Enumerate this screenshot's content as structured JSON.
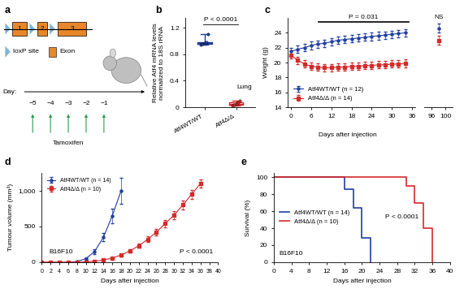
{
  "diagram": {
    "panel": "a",
    "exons": [
      "1",
      "2",
      "3"
    ],
    "key": [
      {
        "label": "loxP site",
        "color": "#7fb3d5"
      },
      {
        "label": "Exon",
        "color": "#e8862a"
      }
    ],
    "timeline": {
      "label": "Day:",
      "days": [
        "−5",
        "−4",
        "−3",
        "−2",
        "−1"
      ],
      "treatment": "Tamoxifen",
      "color": "#2e9e4f"
    }
  },
  "chart_data": [
    {
      "panel": "b",
      "type": "box",
      "ylabel": "Relative Atf4 mRNA levels\nnormalized to 18S rRNA",
      "categories": [
        "Atf4WT/WT",
        "Atf4Δ/Δ"
      ],
      "points": [
        [
          0.95,
          0.96,
          0.97,
          0.98,
          1.1
        ],
        [
          0.02,
          0.04,
          0.05,
          0.07,
          0.1
        ]
      ],
      "colors": [
        "#1f3f9f",
        "#d42a2a"
      ],
      "ylim": [
        0,
        1.35
      ],
      "yticks": [
        0,
        0.4,
        0.8,
        1.2
      ],
      "annotations": [
        "P < 0.0001",
        "Lung"
      ]
    },
    {
      "panel": "c",
      "type": "line",
      "xlabel": "Days after injection",
      "ylabel": "Weight (g)",
      "x": [
        0,
        2,
        4,
        6,
        8,
        10,
        12,
        14,
        16,
        18,
        20,
        22,
        24,
        26,
        28,
        30,
        32,
        34,
        98
      ],
      "series": [
        {
          "name": "Atf4WT/WT (n = 12)",
          "color": "#1f3f9f",
          "marker": "o",
          "values": [
            21.5,
            21.8,
            22.0,
            22.3,
            22.5,
            22.6,
            22.8,
            23.0,
            23.1,
            23.2,
            23.3,
            23.4,
            23.5,
            23.6,
            23.7,
            23.8,
            23.9,
            24.0,
            24.6
          ],
          "errors": [
            0.5,
            0.5,
            0.5,
            0.5,
            0.5,
            0.5,
            0.5,
            0.5,
            0.5,
            0.5,
            0.5,
            0.5,
            0.5,
            0.5,
            0.5,
            0.5,
            0.5,
            0.5,
            0.6
          ]
        },
        {
          "name": "Atf4Δ/Δ (n = 14)",
          "color": "#d42a2a",
          "marker": "s",
          "values": [
            21.0,
            20.3,
            19.8,
            19.5,
            19.4,
            19.3,
            19.3,
            19.4,
            19.4,
            19.5,
            19.5,
            19.6,
            19.6,
            19.7,
            19.7,
            19.8,
            19.8,
            19.9,
            23.0
          ],
          "errors": [
            0.5,
            0.5,
            0.5,
            0.5,
            0.5,
            0.5,
            0.5,
            0.5,
            0.5,
            0.5,
            0.5,
            0.5,
            0.5,
            0.5,
            0.5,
            0.5,
            0.5,
            0.5,
            0.6
          ]
        }
      ],
      "xlim": [
        [
          -1,
          37
        ],
        [
          94,
          102
        ]
      ],
      "xticks": [
        [
          0,
          6,
          12,
          18,
          24,
          30,
          36
        ],
        [
          96,
          100
        ]
      ],
      "ylim": [
        14,
        26
      ],
      "yticks": [
        14,
        16,
        18,
        20,
        22,
        24
      ],
      "legend": "lower left",
      "annotations": [
        "P = 0.031",
        "NS"
      ]
    },
    {
      "panel": "d",
      "type": "line",
      "xlabel": "Days after injection",
      "ylabel": "Tumour volume (mm³)",
      "series": [
        {
          "name": "Atf4WT/WT (n = 14)",
          "color": "#1f3f9f",
          "marker": "o",
          "x": [
            0,
            2,
            4,
            6,
            8,
            10,
            12,
            14,
            16,
            18
          ],
          "values": [
            0,
            0,
            0,
            0,
            10,
            50,
            150,
            350,
            650,
            1000
          ],
          "errors": [
            0,
            0,
            0,
            0,
            5,
            15,
            35,
            60,
            100,
            180
          ]
        },
        {
          "name": "Atf4Δ/Δ (n = 10)",
          "color": "#d42a2a",
          "marker": "s",
          "x": [
            0,
            2,
            4,
            6,
            8,
            10,
            12,
            14,
            16,
            18,
            20,
            22,
            24,
            26,
            28,
            30,
            32,
            34,
            36
          ],
          "values": [
            0,
            0,
            0,
            0,
            0,
            5,
            15,
            30,
            60,
            100,
            160,
            230,
            320,
            420,
            540,
            660,
            800,
            950,
            1100
          ],
          "errors": [
            0,
            0,
            0,
            0,
            0,
            3,
            5,
            8,
            12,
            18,
            25,
            30,
            40,
            45,
            50,
            55,
            60,
            60,
            60
          ]
        }
      ],
      "xlim": [
        0,
        40
      ],
      "xticks": [
        0,
        2,
        4,
        6,
        8,
        10,
        12,
        14,
        16,
        18,
        20,
        22,
        24,
        26,
        28,
        30,
        32,
        34,
        36,
        38,
        40
      ],
      "ylim": [
        0,
        1250
      ],
      "yticks": [
        0,
        500,
        {
          "value": 1000,
          "label": "1,000"
        }
      ],
      "legend": "upper left",
      "annotations": [
        "B16F10",
        "P < 0.0001"
      ]
    },
    {
      "panel": "e",
      "type": "step",
      "xlabel": "Days after injection",
      "ylabel": "Survival (%)",
      "series": [
        {
          "name": "Atf4WT/WT (n = 14)",
          "color": "#1f3f9f",
          "x": [
            0,
            16,
            18,
            20,
            22
          ],
          "values": [
            100,
            86,
            64,
            29,
            0
          ]
        },
        {
          "name": "Atf4Δ/Δ (n = 10)",
          "color": "#d42a2a",
          "x": [
            0,
            30,
            32,
            34,
            36
          ],
          "values": [
            100,
            90,
            70,
            40,
            0
          ]
        }
      ],
      "xlim": [
        0,
        40
      ],
      "xticks": [
        0,
        4,
        8,
        12,
        16,
        20,
        24,
        28,
        32,
        36,
        40
      ],
      "ylim": [
        0,
        105
      ],
      "yticks": [
        0,
        20,
        40,
        60,
        80,
        100
      ],
      "legend": "center left",
      "annotations": [
        "B16F10",
        "P < 0.0001"
      ]
    }
  ]
}
